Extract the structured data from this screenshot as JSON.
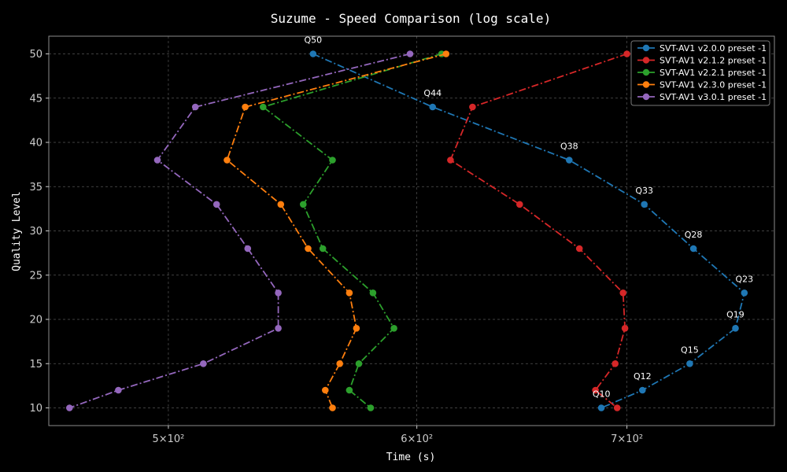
{
  "chart_data": {
    "type": "line",
    "title": "Suzume - Speed Comparison (log scale)",
    "xlabel": "Time (s)",
    "ylabel": "Quality Level",
    "x_scale": "log",
    "xlim": [
      458,
      780
    ],
    "ylim": [
      8,
      52
    ],
    "x_ticks": [
      {
        "value": 500,
        "label": "5×10²"
      },
      {
        "value": 600,
        "label": "6×10²"
      },
      {
        "value": 700,
        "label": "7×10²"
      }
    ],
    "y_ticks": [
      10,
      15,
      20,
      25,
      30,
      35,
      40,
      45,
      50
    ],
    "grid": true,
    "legend_position": "top-right",
    "series": [
      {
        "name": "SVT-AV1 v2.0.0 preset -1",
        "color": "#1f77b4",
        "points": [
          [
            556,
            50
          ],
          [
            607,
            44
          ],
          [
            671,
            38
          ],
          [
            709,
            33
          ],
          [
            735,
            28
          ],
          [
            763,
            23
          ],
          [
            758,
            19
          ],
          [
            733,
            15
          ],
          [
            708,
            12
          ],
          [
            687,
            10
          ]
        ]
      },
      {
        "name": "SVT-AV1 v2.1.2 preset -1",
        "color": "#d62728",
        "points": [
          [
            700,
            50
          ],
          [
            625,
            44
          ],
          [
            615,
            38
          ],
          [
            647,
            33
          ],
          [
            676,
            28
          ],
          [
            698,
            23
          ],
          [
            699,
            19
          ],
          [
            694,
            15
          ],
          [
            684,
            12
          ],
          [
            695,
            10
          ]
        ]
      },
      {
        "name": "SVT-AV1 v2.2.1 preset -1",
        "color": "#2ca02c",
        "points": [
          [
            611,
            50
          ],
          [
            536,
            44
          ],
          [
            564,
            38
          ],
          [
            552,
            33
          ],
          [
            560,
            28
          ],
          [
            581,
            23
          ],
          [
            590,
            19
          ],
          [
            575,
            15
          ],
          [
            571,
            12
          ],
          [
            580,
            10
          ]
        ]
      },
      {
        "name": "SVT-AV1 v2.3.0 preset -1",
        "color": "#ff7f0e",
        "points": [
          [
            613,
            50
          ],
          [
            529,
            44
          ],
          [
            522,
            38
          ],
          [
            543,
            33
          ],
          [
            554,
            28
          ],
          [
            571,
            23
          ],
          [
            574,
            19
          ],
          [
            567,
            15
          ],
          [
            561,
            12
          ],
          [
            564,
            10
          ]
        ]
      },
      {
        "name": "SVT-AV1 v3.0.1 preset -1",
        "color": "#9467bd",
        "points": [
          [
            597,
            50
          ],
          [
            510,
            44
          ],
          [
            496,
            38
          ],
          [
            518,
            33
          ],
          [
            530,
            28
          ],
          [
            542,
            23
          ],
          [
            542,
            19
          ],
          [
            513,
            15
          ],
          [
            482,
            12
          ],
          [
            465,
            10
          ]
        ]
      }
    ],
    "annotations": [
      {
        "text": "Q50",
        "x": 556,
        "y": 50
      },
      {
        "text": "Q44",
        "x": 607,
        "y": 44
      },
      {
        "text": "Q38",
        "x": 671,
        "y": 38
      },
      {
        "text": "Q33",
        "x": 709,
        "y": 33
      },
      {
        "text": "Q28",
        "x": 735,
        "y": 28
      },
      {
        "text": "Q23",
        "x": 763,
        "y": 23
      },
      {
        "text": "Q19",
        "x": 758,
        "y": 19
      },
      {
        "text": "Q15",
        "x": 733,
        "y": 15
      },
      {
        "text": "Q12",
        "x": 708,
        "y": 12
      },
      {
        "text": "Q10",
        "x": 687,
        "y": 10
      }
    ]
  }
}
